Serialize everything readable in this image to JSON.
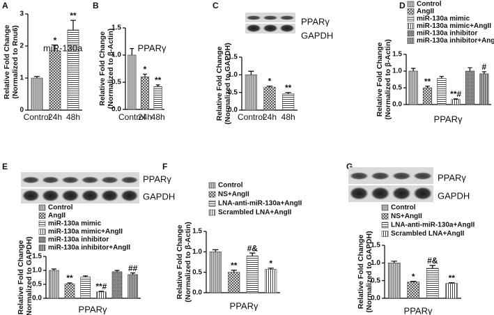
{
  "chart_data": [
    {
      "type": "bar",
      "panel": "A",
      "annotation": "miR-130a",
      "ylabel": [
        "Relative Fold Change",
        "(Normalized to Rnu6)"
      ],
      "categories": [
        "Control",
        "24h",
        "48h"
      ],
      "values": [
        1.0,
        1.85,
        2.5
      ],
      "errors": [
        0.05,
        0.18,
        0.3
      ],
      "significance": [
        null,
        "*",
        "**"
      ],
      "ylim": [
        0,
        3
      ],
      "yticks": [
        0,
        1,
        2,
        3
      ]
    },
    {
      "type": "bar",
      "panel": "B",
      "title": "PPARγ",
      "ylabel": [
        "Relative Fold Change",
        "(Normalized to β-Actin)"
      ],
      "categories": [
        "Control",
        "24h",
        "48h"
      ],
      "values": [
        1.0,
        0.6,
        0.42
      ],
      "errors": [
        0.12,
        0.05,
        0.03
      ],
      "significance": [
        null,
        "*",
        "**"
      ],
      "ylim": [
        0,
        1.5
      ],
      "yticks": [
        {
          "value": 0,
          "label": "0.0"
        },
        0.5,
        {
          "value": 1,
          "label": "1.0"
        },
        1.5
      ]
    },
    {
      "type": "bar",
      "panel": "C",
      "blot_labels": [
        "PPARγ",
        "GAPDH"
      ],
      "ylabel": [
        "Relative Fold Change",
        "(Normalized to GAPDH)"
      ],
      "categories": [
        "Control",
        "24h",
        "48h"
      ],
      "values": [
        1.0,
        0.65,
        0.46
      ],
      "errors": [
        0.1,
        0.03,
        0.04
      ],
      "significance": [
        null,
        "*",
        "**"
      ],
      "ylim": [
        0,
        1.5
      ],
      "yticks": [
        {
          "value": 0,
          "label": "0.0"
        },
        0.5,
        {
          "value": 1,
          "label": "1.0"
        },
        1.5
      ]
    },
    {
      "type": "bar",
      "panel": "D",
      "xlabel": "PPARγ",
      "ylabel": [
        "Relative Fold Change",
        "(Normalized to β-Actin)"
      ],
      "series": [
        {
          "name": "Control",
          "values": [
            1.0
          ],
          "errors": [
            0.08
          ]
        },
        {
          "name": "AngII",
          "values": [
            0.5
          ],
          "errors": [
            0.05
          ],
          "significance": "**"
        },
        {
          "name": "miR-130a mimic",
          "values": [
            0.78
          ],
          "errors": [
            0.06
          ]
        },
        {
          "name": "miR-130a mimic+AngII",
          "values": [
            0.15
          ],
          "errors": [
            0.02
          ],
          "significance": "**#"
        },
        {
          "name": "miR-130a inhibitor",
          "values": [
            1.0
          ],
          "errors": [
            0.1
          ]
        },
        {
          "name": "miR-130a inhibitor+AngII",
          "values": [
            0.92
          ],
          "errors": [
            0.06
          ],
          "significance": "#"
        }
      ],
      "ylim": [
        0,
        1.5
      ],
      "yticks": [
        {
          "value": 0,
          "label": "0.0"
        },
        0.5,
        {
          "value": 1,
          "label": "1.0"
        },
        1.5
      ]
    },
    {
      "type": "bar",
      "panel": "E",
      "xlabel": "PPARγ",
      "blot_labels": [
        "PPARγ",
        "GAPDH"
      ],
      "ylabel": [
        "Relative Fold Change",
        "(Normalized to GAPDH)"
      ],
      "series": [
        {
          "name": "Control",
          "values": [
            1.0
          ],
          "errors": [
            0.05
          ]
        },
        {
          "name": "AngII",
          "values": [
            0.52
          ],
          "errors": [
            0.03
          ],
          "significance": "**"
        },
        {
          "name": "miR-130a mimic",
          "values": [
            0.76
          ],
          "errors": [
            0.04
          ]
        },
        {
          "name": "miR-130a mimic+AngII",
          "values": [
            0.23
          ],
          "errors": [
            0.02
          ],
          "significance": "**#"
        },
        {
          "name": "miR-130a inhibitor",
          "values": [
            0.95
          ],
          "errors": [
            0.05
          ]
        },
        {
          "name": "miR-130a inhibitor+AngII",
          "values": [
            0.85
          ],
          "errors": [
            0.06
          ],
          "significance": "##"
        }
      ],
      "ylim": [
        0,
        1.5
      ],
      "yticks": [
        {
          "value": 0,
          "label": "0.0"
        },
        0.5,
        {
          "value": 1,
          "label": "1.0"
        },
        1.5
      ]
    },
    {
      "type": "bar",
      "panel": "F",
      "xlabel": "PPARγ",
      "ylabel": [
        "Relative Fold Change",
        "(Normalized to β-Actin)"
      ],
      "series": [
        {
          "name": "Control",
          "values": [
            1.0
          ],
          "errors": [
            0.05
          ]
        },
        {
          "name": "NS+AngII",
          "values": [
            0.5
          ],
          "errors": [
            0.05
          ],
          "significance": "**"
        },
        {
          "name": "LNA-anti-miR-130a+AngII",
          "values": [
            0.9
          ],
          "errors": [
            0.07
          ],
          "significance": "#&"
        },
        {
          "name": "Scrambled LNA+AngII",
          "values": [
            0.57
          ],
          "errors": [
            0.03
          ],
          "significance": "*"
        }
      ],
      "ylim": [
        0,
        1.5
      ],
      "yticks": [
        {
          "value": 0,
          "label": "0.0"
        },
        0.5,
        {
          "value": 1,
          "label": "1.0"
        },
        1.5
      ]
    },
    {
      "type": "bar",
      "panel": "G",
      "xlabel": "PPARγ",
      "blot_labels": [
        "PPARγ",
        "GAPDH"
      ],
      "ylabel": [
        "Relative Fold Change",
        "(Normalized to GAPDH)"
      ],
      "series": [
        {
          "name": "Control",
          "values": [
            1.0
          ],
          "errors": [
            0.05
          ]
        },
        {
          "name": "NS+AngII",
          "values": [
            0.46
          ],
          "errors": [
            0.02
          ],
          "significance": "*"
        },
        {
          "name": "LNA-anti-miR-130a+AngII",
          "values": [
            0.85
          ],
          "errors": [
            0.08
          ],
          "significance": "#&"
        },
        {
          "name": "Scrambled LNA+AngII",
          "values": [
            0.42
          ],
          "errors": [
            0.02
          ],
          "significance": "**"
        }
      ],
      "ylim": [
        0,
        1.5
      ],
      "yticks": [
        {
          "value": 0,
          "label": "0.0"
        },
        0.5,
        {
          "value": 1,
          "label": "1.0"
        },
        1.5
      ]
    }
  ]
}
